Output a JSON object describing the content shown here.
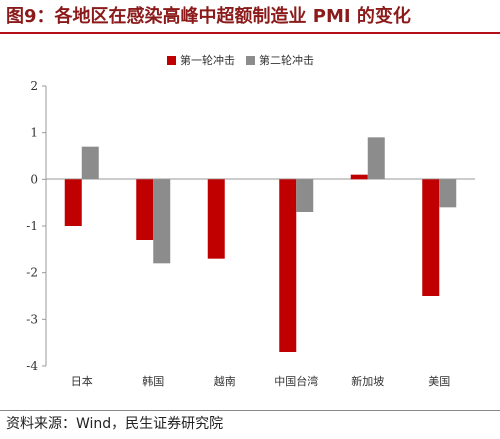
{
  "header": {
    "title": "图9：各地区在感染高峰中超额制造业 PMI 的变化"
  },
  "footer": {
    "source": "资料来源：Wind，民生证券研究院"
  },
  "chart_data": {
    "type": "bar",
    "categories": [
      "日本",
      "韩国",
      "越南",
      "中国台湾",
      "新加坡",
      "美国"
    ],
    "series": [
      {
        "name": "第一轮冲击",
        "color": "#c00000",
        "values": [
          -1.0,
          -1.3,
          -1.7,
          -3.7,
          0.1,
          -2.5
        ]
      },
      {
        "name": "第二轮冲击",
        "color": "#8c8c8c",
        "values": [
          0.7,
          -1.8,
          null,
          -0.7,
          0.9,
          -0.6
        ]
      }
    ],
    "yticks": [
      "2",
      "1",
      "0",
      "-1",
      "-2",
      "-3",
      "-4"
    ],
    "ylim": [
      -4,
      2
    ],
    "legend_position": "top-center",
    "grid": false
  }
}
